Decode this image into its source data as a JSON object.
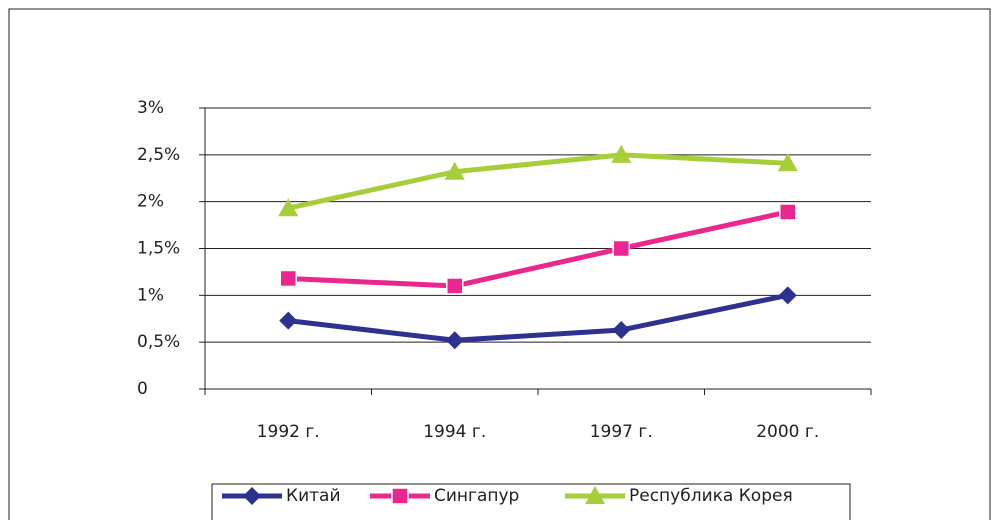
{
  "chart_data": {
    "type": "line",
    "categories": [
      "1992 г.",
      "1994 г.",
      "1997 г.",
      "2000 г."
    ],
    "series": [
      {
        "name": "Китай",
        "color": "#2e3192",
        "marker": "diamond",
        "values": [
          0.73,
          0.52,
          0.63,
          1.0
        ]
      },
      {
        "name": "Сингапур",
        "color": "#ec268f",
        "marker": "square",
        "values": [
          1.18,
          1.1,
          1.5,
          1.89
        ]
      },
      {
        "name": "Республика Корея",
        "color": "#a6ce39",
        "marker": "triangle",
        "values": [
          1.93,
          2.32,
          2.5,
          2.41
        ]
      }
    ],
    "ylim": [
      0,
      3
    ],
    "yticks": [
      0,
      {
        "value": 0.5,
        "label": "0,5%"
      },
      {
        "value": 1,
        "label": "1%"
      },
      {
        "value": 1.5,
        "label": "1,5%"
      },
      {
        "value": 2,
        "label": "2%"
      },
      {
        "value": 2.5,
        "label": "2,5%"
      },
      {
        "value": 3,
        "label": "3%"
      }
    ],
    "grid": true,
    "legend": "bottom"
  }
}
